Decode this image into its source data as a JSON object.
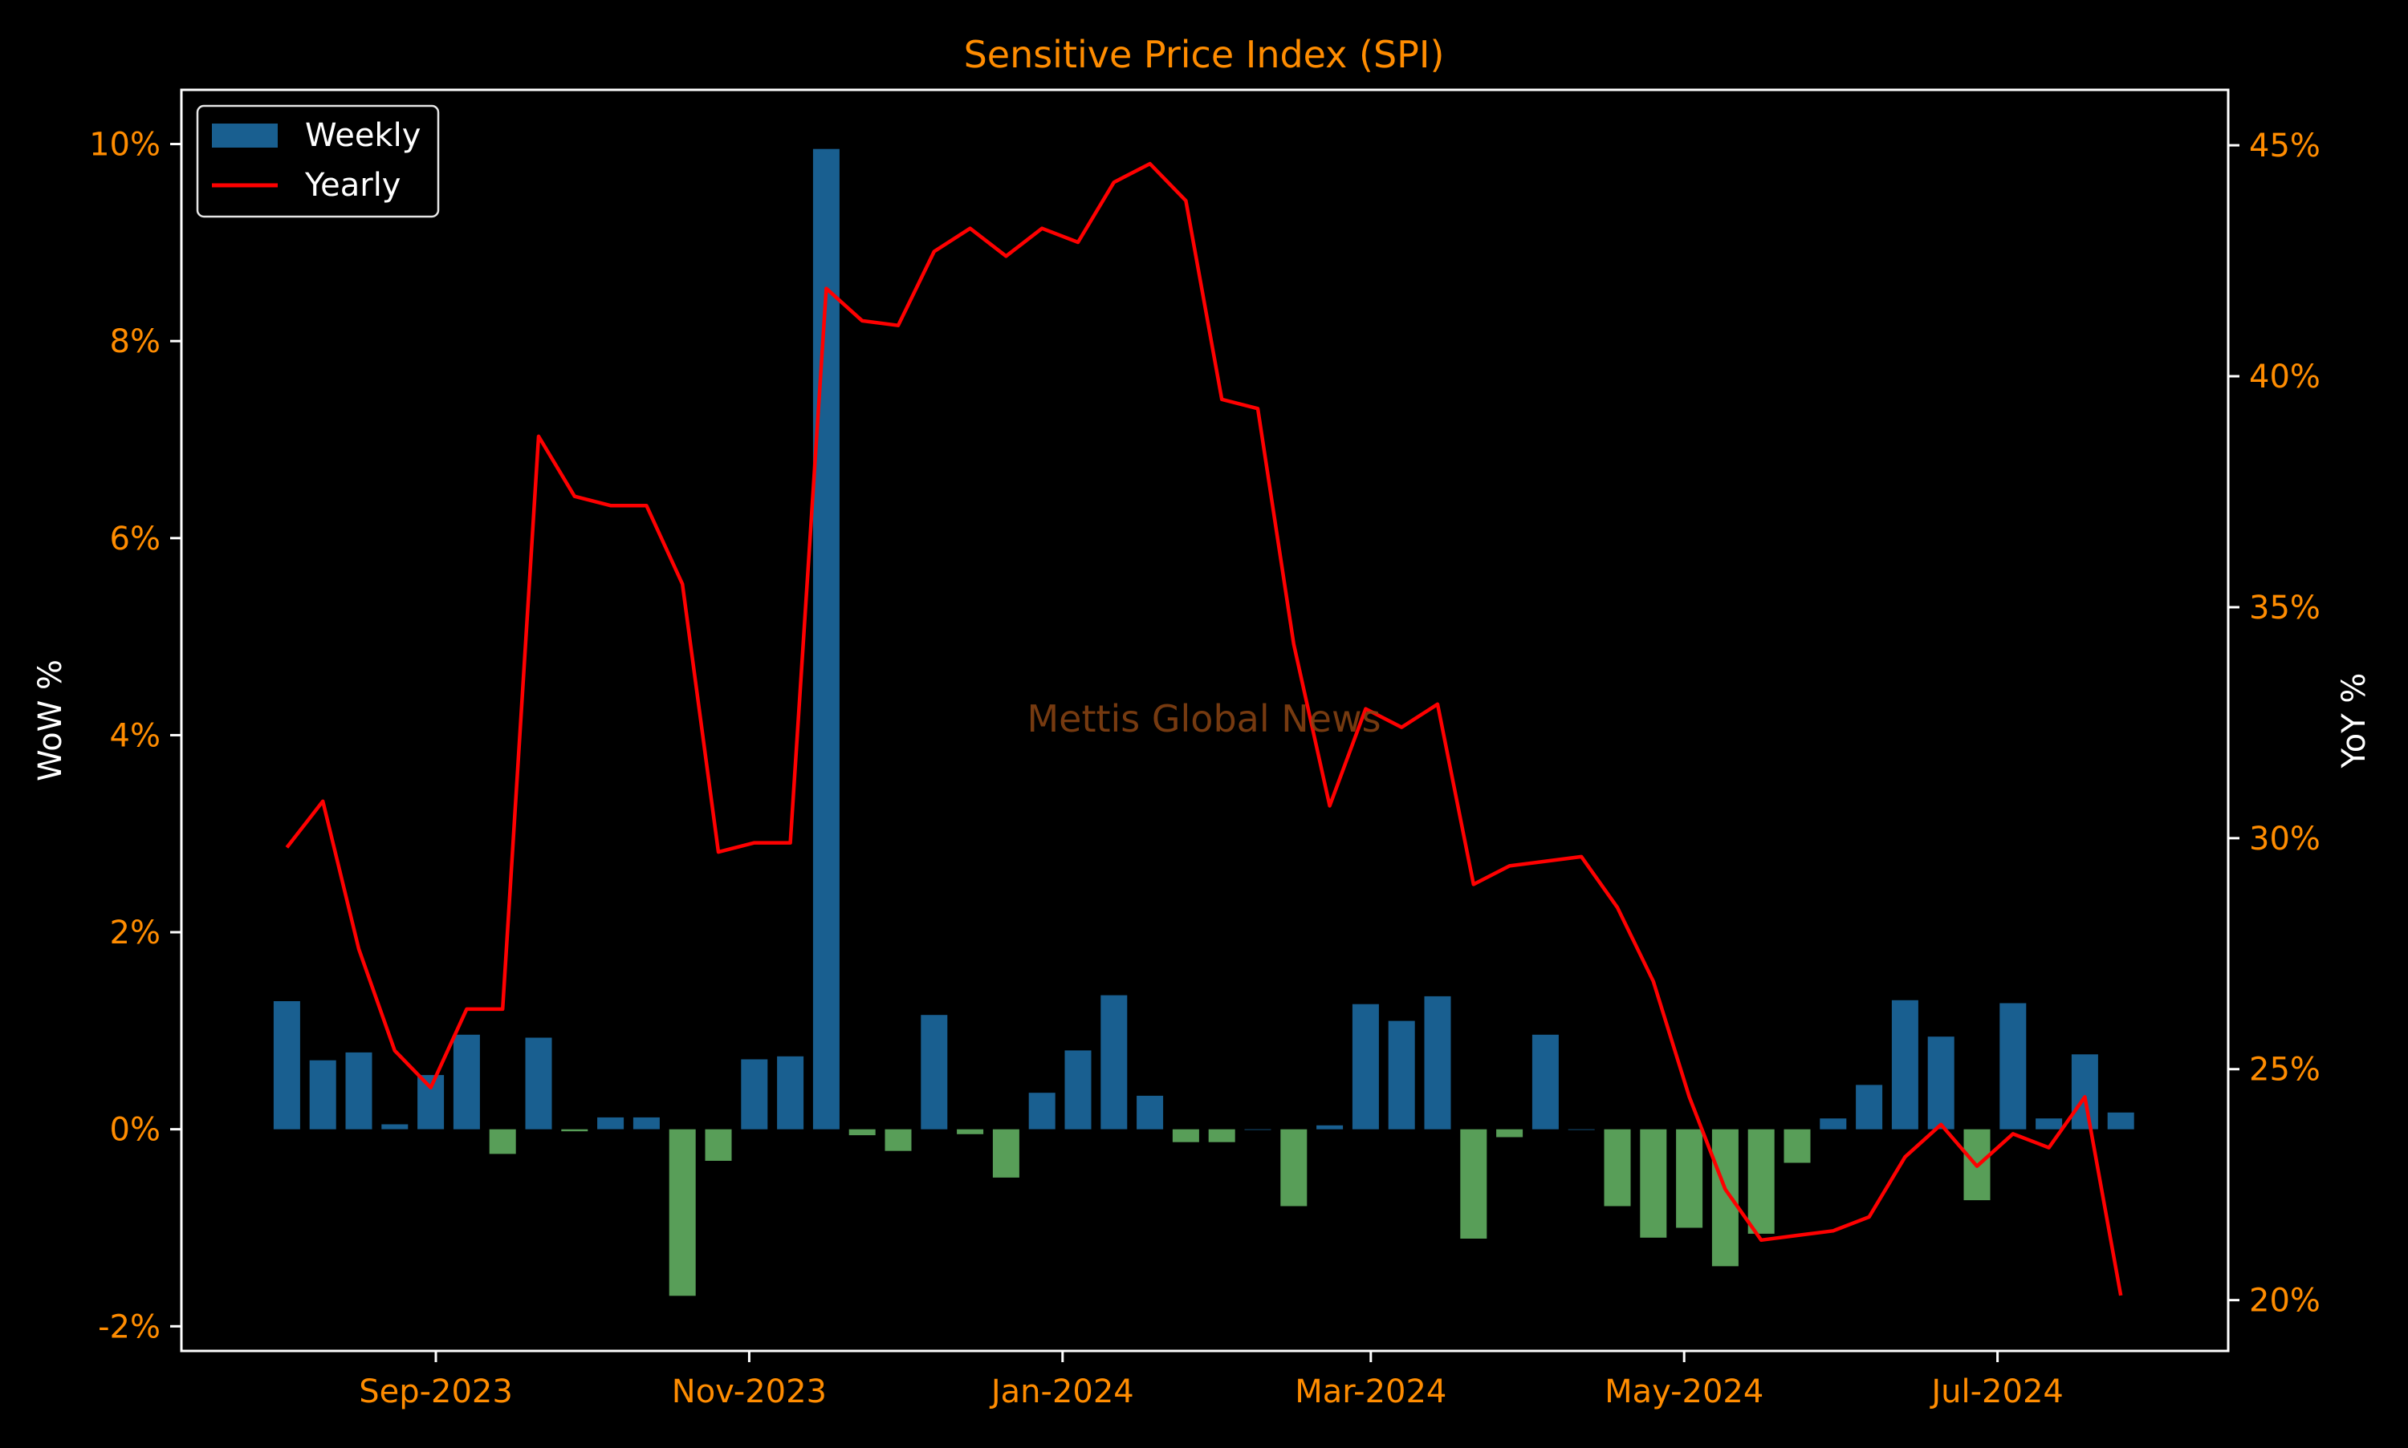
{
  "colors": {
    "background": "#000000",
    "weekly_positive": "#1f77b4",
    "weekly_negative": "#6ec56e",
    "yearly_line": "#ff0000",
    "tick_text": "#ff8c00",
    "title_text": "#ff8c00",
    "axis_label_text": "#ffffff",
    "axes_frame": "#ffffff",
    "watermark": "#8b4513"
  },
  "chart_data": {
    "type": "bar",
    "title": "Sensitive Price Index (SPI)",
    "watermark": "Mettis Global News",
    "xlabel": "",
    "ylabel_left": "WoW %",
    "ylabel_right": "YoY %",
    "x_ticks": [
      "Sep-2023",
      "Nov-2023",
      "Jan-2024",
      "Mar-2024",
      "May-2024",
      "Jul-2024"
    ],
    "y_left_ticks": [
      "-2%",
      "0%",
      "2%",
      "4%",
      "6%",
      "8%",
      "10%"
    ],
    "y_right_ticks": [
      "20%",
      "25%",
      "30%",
      "35%",
      "40%",
      "45%"
    ],
    "ylim_left": [
      -2.25,
      10.55
    ],
    "ylim_right": [
      18.9,
      46.2
    ],
    "legend": {
      "position": "top-left",
      "entries": [
        "Weekly",
        "Yearly"
      ]
    },
    "series": [
      {
        "name": "Weekly",
        "type": "bar",
        "x": [
          "2023-08-03",
          "2023-08-10",
          "2023-08-17",
          "2023-08-24",
          "2023-08-31",
          "2023-09-07",
          "2023-09-14",
          "2023-09-21",
          "2023-09-28",
          "2023-10-05",
          "2023-10-12",
          "2023-10-19",
          "2023-10-26",
          "2023-11-02",
          "2023-11-09",
          "2023-11-16",
          "2023-11-23",
          "2023-11-30",
          "2023-12-07",
          "2023-12-14",
          "2023-12-21",
          "2023-12-28",
          "2024-01-04",
          "2024-01-11",
          "2024-01-18",
          "2024-01-25",
          "2024-02-01",
          "2024-02-08",
          "2024-02-15",
          "2024-02-22",
          "2024-02-29",
          "2024-03-07",
          "2024-03-14",
          "2024-03-21",
          "2024-03-28",
          "2024-04-04",
          "2024-04-11",
          "2024-04-18",
          "2024-04-25",
          "2024-05-02",
          "2024-05-09",
          "2024-05-16",
          "2024-05-23",
          "2024-05-30",
          "2024-06-06",
          "2024-06-13",
          "2024-06-20",
          "2024-06-27",
          "2024-07-04",
          "2024-07-11",
          "2024-07-18",
          "2024-07-25"
        ],
        "values": [
          1.3,
          0.7,
          0.78,
          0.05,
          0.55,
          0.96,
          -0.25,
          0.93,
          -0.02,
          0.12,
          0.12,
          -1.69,
          -0.32,
          0.71,
          0.74,
          9.95,
          -0.06,
          -0.22,
          1.16,
          -0.05,
          -0.49,
          0.37,
          0.8,
          1.36,
          0.34,
          -0.13,
          -0.13,
          0.0,
          -0.78,
          0.04,
          1.27,
          1.1,
          1.35,
          -1.11,
          -0.08,
          0.96,
          0.0,
          -0.78,
          -1.1,
          -1.0,
          -1.39,
          -1.06,
          -0.34,
          0.11,
          0.45,
          1.31,
          0.94,
          -0.72,
          1.28,
          0.11,
          0.76,
          0.17
        ]
      },
      {
        "name": "Yearly",
        "type": "line",
        "x": [
          "2023-08-03",
          "2023-08-10",
          "2023-08-17",
          "2023-08-24",
          "2023-08-31",
          "2023-09-07",
          "2023-09-14",
          "2023-09-21",
          "2023-09-28",
          "2023-10-05",
          "2023-10-12",
          "2023-10-19",
          "2023-10-26",
          "2023-11-02",
          "2023-11-09",
          "2023-11-16",
          "2023-11-23",
          "2023-11-30",
          "2023-12-07",
          "2023-12-14",
          "2023-12-21",
          "2023-12-28",
          "2024-01-04",
          "2024-01-11",
          "2024-01-18",
          "2024-01-25",
          "2024-02-01",
          "2024-02-08",
          "2024-02-15",
          "2024-02-22",
          "2024-02-29",
          "2024-03-07",
          "2024-03-14",
          "2024-03-21",
          "2024-03-28",
          "2024-04-04",
          "2024-04-11",
          "2024-04-18",
          "2024-04-25",
          "2024-05-02",
          "2024-05-09",
          "2024-05-16",
          "2024-05-23",
          "2024-05-30",
          "2024-06-06",
          "2024-06-13",
          "2024-06-20",
          "2024-06-27",
          "2024-07-04",
          "2024-07-11",
          "2024-07-18",
          "2024-07-25"
        ],
        "values": [
          29.8,
          30.8,
          27.6,
          25.4,
          24.6,
          26.3,
          26.3,
          38.7,
          37.4,
          37.2,
          37.2,
          35.5,
          29.7,
          29.9,
          29.9,
          41.9,
          41.2,
          41.1,
          42.7,
          43.2,
          42.6,
          43.2,
          42.9,
          44.2,
          44.6,
          43.8,
          39.5,
          39.3,
          34.2,
          30.7,
          32.8,
          32.4,
          32.9,
          29.0,
          29.4,
          29.5,
          29.6,
          28.5,
          26.9,
          24.4,
          22.4,
          21.3,
          21.4,
          21.5,
          21.8,
          23.1,
          23.8,
          22.9,
          23.6,
          23.3,
          24.4,
          20.1
        ]
      }
    ]
  }
}
